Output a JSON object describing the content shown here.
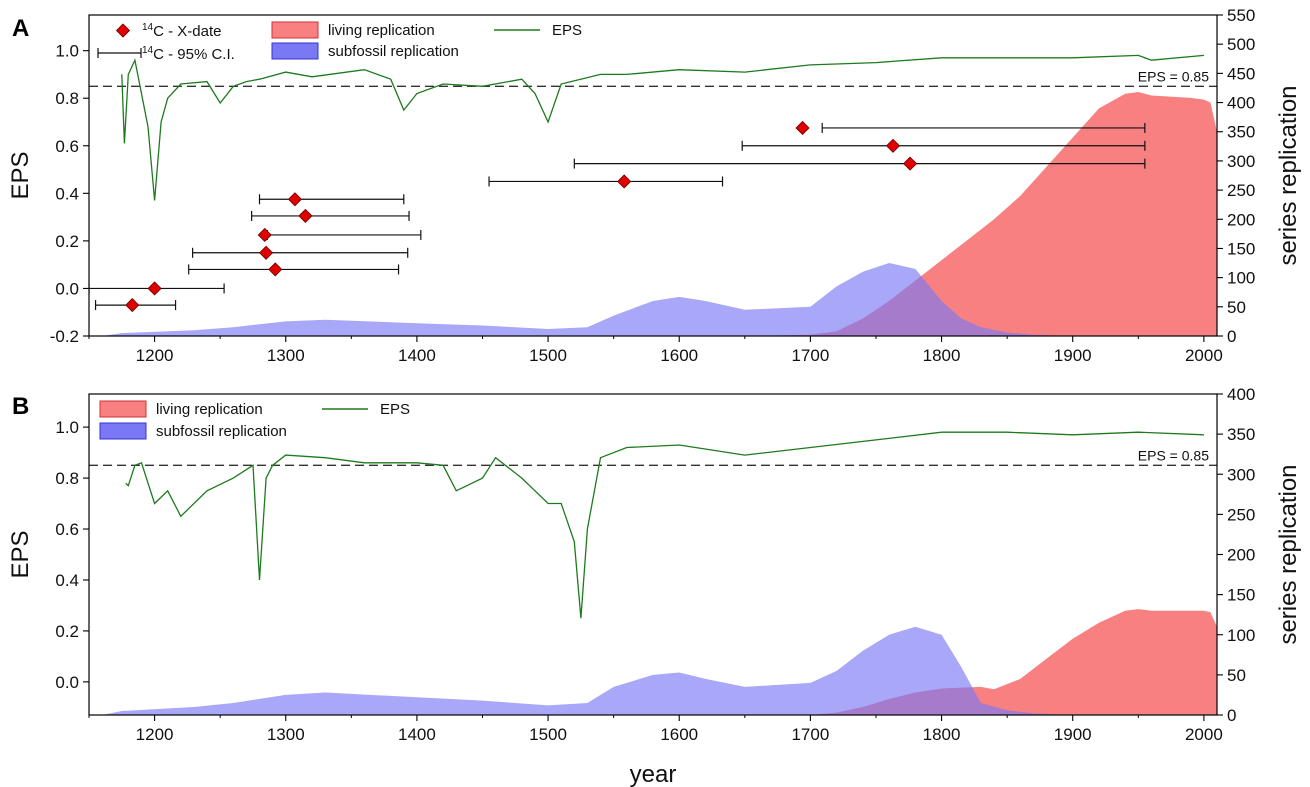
{
  "colors": {
    "living": "#f88080",
    "subfossil": "#7a78f5",
    "eps": "#1e7a1e",
    "overlap": "#a53a6a",
    "threshold": "#333333",
    "xdate": "#e00000"
  },
  "chart_data": [
    {
      "panel": "A",
      "type": "line",
      "xlabel": "",
      "ylabel": "EPS",
      "y2label": "series replication",
      "xlim": [
        1150,
        2010
      ],
      "ylim": [
        -0.2,
        1.15
      ],
      "y2lim": [
        0,
        550
      ],
      "xticks": [
        "1200",
        "1300",
        "1400",
        "1500",
        "1600",
        "1700",
        "1800",
        "1900",
        "2000"
      ],
      "yticks": [
        "-0.2",
        "0.0",
        "0.2",
        "0.4",
        "0.6",
        "0.8",
        "1.0"
      ],
      "y2ticks": [
        "0",
        "50",
        "100",
        "150",
        "200",
        "250",
        "300",
        "350",
        "400",
        "450",
        "500",
        "550"
      ],
      "threshold": {
        "value": 0.85,
        "label": "EPS = 0.85"
      },
      "legend": {
        "xdate": "C - X-date",
        "ci": "C - 95% C.I.",
        "iso": "14",
        "living": "living replication",
        "subfossil": "subfossil replication",
        "eps": "EPS"
      },
      "subfossil": {
        "x": [
          1160,
          1175,
          1230,
          1260,
          1300,
          1330,
          1400,
          1450,
          1500,
          1530,
          1550,
          1580,
          1600,
          1620,
          1650,
          1700,
          1720,
          1740,
          1760,
          1780,
          1800,
          1815,
          1830,
          1850,
          1870,
          1900,
          1950,
          2000
        ],
        "y": [
          0,
          5,
          10,
          15,
          25,
          28,
          22,
          18,
          12,
          15,
          35,
          60,
          67,
          60,
          45,
          50,
          85,
          110,
          125,
          115,
          60,
          30,
          15,
          6,
          2,
          0,
          0,
          0
        ]
      },
      "living": {
        "x": [
          1650,
          1700,
          1720,
          1740,
          1760,
          1780,
          1800,
          1820,
          1840,
          1860,
          1880,
          1900,
          1920,
          1940,
          1950,
          1960,
          1990,
          2000,
          2005,
          2010
        ],
        "y": [
          0,
          2,
          8,
          30,
          60,
          95,
          130,
          165,
          200,
          240,
          290,
          340,
          390,
          415,
          418,
          412,
          408,
          405,
          400,
          350
        ]
      },
      "eps": {
        "x": [
          1175,
          1177,
          1180,
          1185,
          1190,
          1195,
          1200,
          1205,
          1210,
          1220,
          1240,
          1250,
          1260,
          1270,
          1280,
          1300,
          1320,
          1360,
          1380,
          1390,
          1400,
          1420,
          1450,
          1480,
          1490,
          1500,
          1510,
          1540,
          1560,
          1600,
          1650,
          1700,
          1750,
          1800,
          1850,
          1900,
          1950,
          1960,
          2000
        ],
        "y": [
          0.9,
          0.61,
          0.9,
          0.96,
          0.82,
          0.68,
          0.37,
          0.7,
          0.8,
          0.86,
          0.87,
          0.78,
          0.85,
          0.87,
          0.88,
          0.91,
          0.89,
          0.92,
          0.88,
          0.75,
          0.82,
          0.86,
          0.85,
          0.88,
          0.82,
          0.7,
          0.86,
          0.9,
          0.9,
          0.92,
          0.91,
          0.94,
          0.95,
          0.97,
          0.97,
          0.97,
          0.98,
          0.96,
          0.98
        ]
      },
      "xdates": [
        {
          "date": 1183,
          "lo": 1155,
          "hi": 1216,
          "eps": -0.07
        },
        {
          "date": 1200,
          "lo": 1150,
          "hi": 1253,
          "eps": 0.0
        },
        {
          "date": 1292,
          "lo": 1226,
          "hi": 1386,
          "eps": 0.08
        },
        {
          "date": 1285,
          "lo": 1229,
          "hi": 1393,
          "eps": 0.15
        },
        {
          "date": 1284,
          "lo": 1286,
          "hi": 1403,
          "eps": 0.225
        },
        {
          "date": 1315,
          "lo": 1274,
          "hi": 1394,
          "eps": 0.305
        },
        {
          "date": 1307,
          "lo": 1280,
          "hi": 1390,
          "eps": 0.375
        },
        {
          "date": 1558,
          "lo": 1455,
          "hi": 1633,
          "eps": 0.45
        },
        {
          "date": 1776,
          "lo": 1520,
          "hi": 1955,
          "eps": 0.525
        },
        {
          "date": 1763,
          "lo": 1648,
          "hi": 1955,
          "eps": 0.6
        },
        {
          "date": 1694,
          "lo": 1709,
          "hi": 1955,
          "eps": 0.675
        }
      ]
    },
    {
      "panel": "B",
      "type": "line",
      "xlabel": "year",
      "ylabel": "EPS",
      "y2label": "series replication",
      "xlim": [
        1150,
        2010
      ],
      "ylim": [
        -0.13,
        1.13
      ],
      "y2lim": [
        0,
        400
      ],
      "xticks": [
        "1200",
        "1300",
        "1400",
        "1500",
        "1600",
        "1700",
        "1800",
        "1900",
        "2000"
      ],
      "yticks": [
        "0.0",
        "0.2",
        "0.4",
        "0.6",
        "0.8",
        "1.0"
      ],
      "y2ticks": [
        "0",
        "50",
        "100",
        "150",
        "200",
        "250",
        "300",
        "350",
        "400"
      ],
      "threshold": {
        "value": 0.85,
        "label": "EPS = 0.85"
      },
      "legend": {
        "living": "living replication",
        "subfossil": "subfossil replication",
        "eps": "EPS"
      },
      "subfossil": {
        "x": [
          1160,
          1175,
          1230,
          1260,
          1300,
          1330,
          1400,
          1450,
          1500,
          1530,
          1550,
          1580,
          1600,
          1620,
          1650,
          1700,
          1720,
          1740,
          1760,
          1780,
          1800,
          1815,
          1830,
          1850,
          1870,
          1900,
          1950,
          2000
        ],
        "y": [
          0,
          5,
          10,
          15,
          25,
          28,
          22,
          18,
          12,
          15,
          35,
          50,
          53,
          45,
          35,
          40,
          55,
          80,
          100,
          110,
          100,
          60,
          15,
          6,
          2,
          0,
          0,
          0
        ]
      },
      "living": {
        "x": [
          1700,
          1720,
          1740,
          1760,
          1780,
          1800,
          1830,
          1840,
          1860,
          1880,
          1900,
          1920,
          1940,
          1950,
          1960,
          1990,
          2000,
          2005,
          2010
        ],
        "y": [
          0,
          3,
          10,
          20,
          28,
          33,
          35,
          32,
          45,
          70,
          95,
          115,
          130,
          132,
          130,
          130,
          130,
          128,
          110
        ]
      },
      "eps": {
        "x": [
          1178,
          1180,
          1185,
          1190,
          1200,
          1210,
          1220,
          1240,
          1260,
          1275,
          1280,
          1285,
          1290,
          1300,
          1330,
          1360,
          1400,
          1420,
          1430,
          1450,
          1460,
          1480,
          1490,
          1500,
          1510,
          1520,
          1525,
          1530,
          1540,
          1560,
          1600,
          1650,
          1700,
          1750,
          1800,
          1850,
          1900,
          1950,
          2000
        ],
        "y": [
          0.78,
          0.77,
          0.85,
          0.86,
          0.7,
          0.75,
          0.65,
          0.75,
          0.8,
          0.85,
          0.4,
          0.8,
          0.85,
          0.89,
          0.88,
          0.86,
          0.86,
          0.85,
          0.75,
          0.8,
          0.88,
          0.8,
          0.75,
          0.7,
          0.7,
          0.55,
          0.25,
          0.6,
          0.88,
          0.92,
          0.93,
          0.89,
          0.92,
          0.95,
          0.98,
          0.98,
          0.97,
          0.98,
          0.97
        ]
      }
    }
  ]
}
